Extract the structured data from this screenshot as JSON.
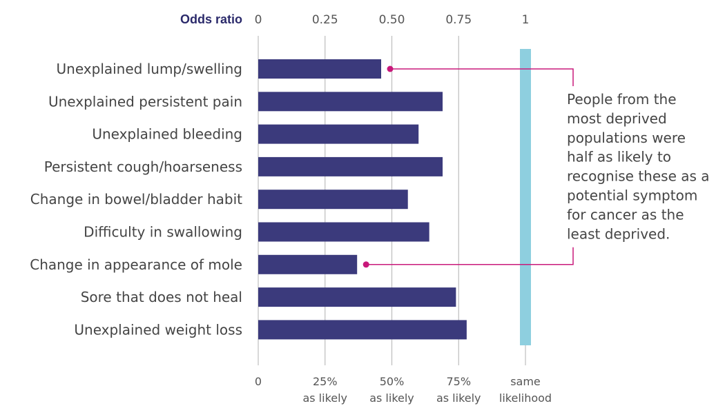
{
  "chart_data": {
    "type": "bar",
    "orientation": "horizontal",
    "x_axis_title": "Odds ratio",
    "top_ticks": [
      {
        "value": 0,
        "label": "0"
      },
      {
        "value": 0.25,
        "label": "0.25"
      },
      {
        "value": 0.5,
        "label": "0.50"
      },
      {
        "value": 0.75,
        "label": "0.75"
      },
      {
        "value": 1,
        "label": "1"
      }
    ],
    "bottom_ticks": [
      {
        "value": 0,
        "lines": [
          "0"
        ]
      },
      {
        "value": 0.25,
        "lines": [
          "25%",
          "as likely"
        ]
      },
      {
        "value": 0.5,
        "lines": [
          "50%",
          "as likely"
        ]
      },
      {
        "value": 0.75,
        "lines": [
          "75%",
          "as likely"
        ]
      },
      {
        "value": 1,
        "lines": [
          "same",
          "likelihood"
        ]
      }
    ],
    "xlim": [
      0,
      1
    ],
    "grid": true,
    "reference_line": {
      "value": 1,
      "color": "#8ecfdf"
    },
    "bar_color": "#3b3a7c",
    "categories": [
      "Unexplained lump/swelling",
      "Unexplained persistent pain",
      "Unexplained bleeding",
      "Persistent cough/hoarseness",
      "Change in bowel/bladder habit",
      "Difficulty in swallowing",
      "Change in appearance of mole",
      "Sore that does not heal",
      "Unexplained weight loss"
    ],
    "values": [
      0.46,
      0.69,
      0.6,
      0.69,
      0.56,
      0.64,
      0.37,
      0.74,
      0.78
    ],
    "annotation": {
      "lines": [
        "People from the",
        "most deprived",
        "populations were",
        "half as likely to",
        "recognise these as a",
        "potential symptom",
        "for cancer as the",
        "least deprived."
      ],
      "color": "#c8187a",
      "targets": [
        "Unexplained lump/swelling",
        "Change in appearance of mole"
      ]
    }
  }
}
